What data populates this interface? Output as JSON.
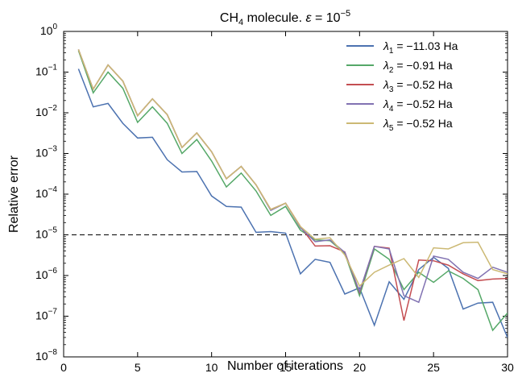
{
  "chart_data": {
    "type": "line",
    "title": "CH4 molecule. ε = 10^-5",
    "title_parts": {
      "mol": "CH",
      "mol_sub": "4",
      "mid": " molecule. ",
      "eps": "ε",
      "eq": " = 10",
      "exp": "−5"
    },
    "xlabel": "Number of iterations",
    "ylabel": "Relative error",
    "xlim": [
      0,
      30
    ],
    "ylim": [
      1e-08,
      1
    ],
    "yscale": "log",
    "grid": false,
    "legend_position": "top-right",
    "x_ticks": [
      "0",
      "5",
      "10",
      "15",
      "20",
      "25",
      "30"
    ],
    "y_ticks": [
      {
        "base": "10",
        "exp": "0"
      },
      {
        "base": "10",
        "exp": "−1"
      },
      {
        "base": "10",
        "exp": "−2"
      },
      {
        "base": "10",
        "exp": "−3"
      },
      {
        "base": "10",
        "exp": "−4"
      },
      {
        "base": "10",
        "exp": "−5"
      },
      {
        "base": "10",
        "exp": "−6"
      },
      {
        "base": "10",
        "exp": "−7"
      },
      {
        "base": "10",
        "exp": "−8"
      }
    ],
    "threshold": 1e-05,
    "x": [
      1,
      2,
      3,
      4,
      5,
      6,
      7,
      8,
      9,
      10,
      11,
      12,
      13,
      14,
      15,
      16,
      17,
      18,
      19,
      20,
      21,
      22,
      23,
      24,
      25,
      26,
      27,
      28,
      29,
      30
    ],
    "series": [
      {
        "name": "λ1 = −11.03 Ha",
        "label_sym": "λ",
        "label_sub": "1",
        "label_rest": " = −11.03 Ha",
        "color": "#4c72b0",
        "values": [
          0.12,
          0.014,
          0.017,
          0.0055,
          0.0024,
          0.0025,
          0.0007,
          0.00035,
          0.00036,
          9e-05,
          5e-05,
          4.8e-05,
          1.15e-05,
          1.2e-05,
          1.1e-05,
          1.1e-06,
          2.5e-06,
          2.1e-06,
          3.5e-07,
          5e-07,
          6e-08,
          7e-07,
          2.6e-07,
          1.4e-06,
          2.8e-06,
          1.5e-06,
          1.5e-07,
          2.1e-07,
          2.2e-07,
          3e-08
        ]
      },
      {
        "name": "λ2 = −0.91 Ha",
        "label_sym": "λ",
        "label_sub": "2",
        "label_rest": " = −0.91 Ha",
        "color": "#55a868",
        "values": [
          0.34,
          0.031,
          0.1,
          0.04,
          0.0058,
          0.014,
          0.0055,
          0.001,
          0.0022,
          0.00065,
          0.00015,
          0.00033,
          0.00012,
          3e-05,
          5e-05,
          1.3e-05,
          7.5e-06,
          7.2e-06,
          3.5e-06,
          3.2e-07,
          4.5e-06,
          2.5e-06,
          4.5e-07,
          1.2e-06,
          6.8e-07,
          1.3e-06,
          8.5e-07,
          4.5e-07,
          4.5e-08,
          1.2e-07
        ]
      },
      {
        "name": "λ3 = −0.52 Ha",
        "label_sym": "λ",
        "label_sub": "3",
        "label_rest": " = −0.52 Ha",
        "color": "#c44e52",
        "values": [
          0.36,
          0.038,
          0.15,
          0.06,
          0.0085,
          0.022,
          0.009,
          0.0014,
          0.0032,
          0.0011,
          0.00024,
          0.00048,
          0.00017,
          4.2e-05,
          6e-05,
          1.6e-05,
          5.3e-06,
          5.4e-06,
          3.8e-06,
          3.8e-07,
          5.2e-06,
          4.7e-06,
          7.8e-08,
          2.4e-06,
          2.3e-06,
          1.8e-06,
          1.1e-06,
          7.5e-07,
          8.2e-07,
          8.5e-07
        ]
      },
      {
        "name": "λ4 = −0.52 Ha",
        "label_sym": "λ",
        "label_sub": "4",
        "label_rest": " = −0.52 Ha",
        "color": "#8172b2",
        "values": [
          0.36,
          0.038,
          0.15,
          0.06,
          0.0085,
          0.022,
          0.009,
          0.0014,
          0.0032,
          0.0011,
          0.00024,
          0.00048,
          0.00017,
          4e-05,
          6e-05,
          1.5e-05,
          6.8e-06,
          7.5e-06,
          3.7e-06,
          4e-07,
          5.2e-06,
          4.5e-06,
          3.2e-07,
          2.2e-07,
          3e-06,
          2.5e-06,
          1.2e-06,
          8.5e-07,
          1.6e-06,
          1.2e-06
        ]
      },
      {
        "name": "λ5 = −0.52 Ha",
        "label_sym": "λ",
        "label_sub": "5",
        "label_rest": " = −0.52 Ha",
        "color": "#ccb974",
        "values": [
          0.36,
          0.038,
          0.15,
          0.06,
          0.0085,
          0.022,
          0.009,
          0.0014,
          0.0032,
          0.0011,
          0.00024,
          0.00048,
          0.00017,
          4.2e-05,
          6e-05,
          1.6e-05,
          7.8e-06,
          8.5e-06,
          3.2e-06,
          5.5e-07,
          1.2e-06,
          1.8e-06,
          2.6e-06,
          9e-07,
          4.8e-06,
          4.5e-06,
          6.4e-06,
          6.6e-06,
          1.4e-06,
          1.1e-06
        ]
      }
    ]
  }
}
